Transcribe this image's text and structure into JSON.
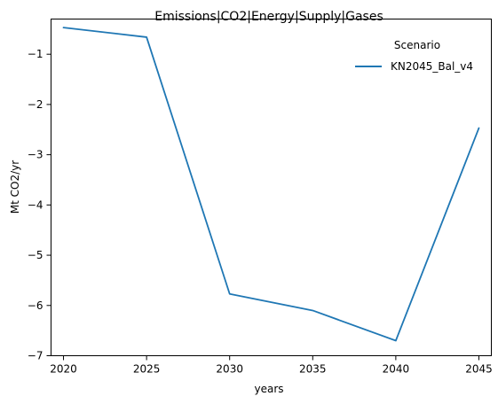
{
  "chart_data": {
    "type": "line",
    "title": "Emissions|CO2|Energy|Supply|Gases",
    "xlabel": "years",
    "ylabel": "Mt CO2/yr",
    "x": [
      2020,
      2025,
      2030,
      2035,
      2040,
      2045
    ],
    "series": [
      {
        "name": "KN2045_Bal_v4",
        "values": [
          -0.47,
          -0.66,
          -5.77,
          -6.1,
          -6.7,
          -2.47
        ],
        "color": "#1f77b4"
      }
    ],
    "xlim": [
      2019.25,
      2045.75
    ],
    "ylim": [
      -7.0,
      -0.3
    ],
    "xticks": [
      2020,
      2025,
      2030,
      2035,
      2040,
      2045
    ],
    "yticks": [
      -7,
      -6,
      -5,
      -4,
      -3,
      -2,
      -1
    ],
    "ytick_labels": [
      "−7",
      "−6",
      "−5",
      "−4",
      "−3",
      "−2",
      "−1"
    ],
    "legend": {
      "title": "Scenario",
      "position": "top-right"
    },
    "grid": false
  }
}
